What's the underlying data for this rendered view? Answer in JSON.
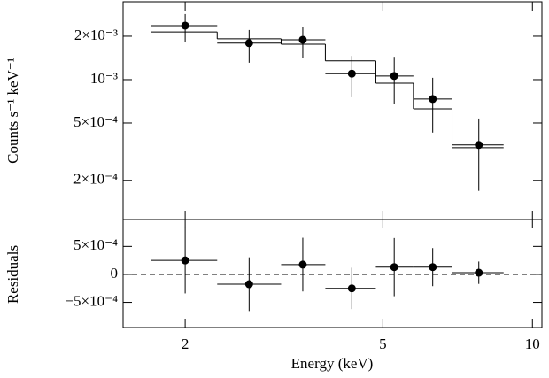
{
  "chart_data": [
    {
      "type": "step",
      "ylabel": "Counts s⁻¹ keV⁻¹",
      "x": [
        2.0,
        2.69,
        3.45,
        4.33,
        5.27,
        6.3,
        7.8
      ],
      "x_low": [
        1.71,
        2.32,
        3.12,
        3.83,
        4.84,
        5.76,
        6.89
      ],
      "x_high": [
        2.32,
        3.12,
        3.83,
        4.84,
        5.76,
        6.89,
        8.75
      ],
      "values": [
        0.00237,
        0.00179,
        0.00189,
        0.0011,
        0.00106,
        0.000733,
        0.000352
      ],
      "y_lower": [
        0.00181,
        0.00131,
        0.00142,
        0.000754,
        0.000674,
        0.000429,
        0.000169
      ],
      "y_upper": [
        0.00285,
        0.00221,
        0.00233,
        0.00146,
        0.00144,
        0.00103,
        0.000537
      ],
      "model": [
        0.00214,
        0.00192,
        0.00176,
        0.00135,
        0.000945,
        0.000627,
        0.000337
      ],
      "xlog": true,
      "ylog": true,
      "xlim": [
        1.5,
        10.45
      ],
      "ylim": [
        0.000107,
        0.00347
      ],
      "yticks": [
        {
          "value": 0.002,
          "label": "2×10⁻³"
        },
        {
          "value": 0.001,
          "label": "10⁻³"
        },
        {
          "value": 0.0005,
          "label": "5×10⁻⁴"
        },
        {
          "value": 0.0002,
          "label": "2×10⁻⁴"
        }
      ],
      "color": "#000000"
    },
    {
      "type": "residual",
      "ylabel": "Residuals",
      "xlabel": "Energy (keV)",
      "values": [
        0.00025,
        -0.000175,
        0.000175,
        -0.00025,
        0.00013,
        0.00013,
        3e-05
      ],
      "errors": [
        0.00059,
        0.00048,
        0.00048,
        0.00037,
        0.00052,
        0.00034,
        0.0002
      ],
      "xlog": true,
      "xlim": [
        1.5,
        10.45
      ],
      "xticks": [
        2,
        5,
        10
      ],
      "ylim": [
        -0.00095,
        0.00098
      ],
      "yticks": [
        {
          "value": 0.0005,
          "label": "5×10⁻⁴"
        },
        0,
        {
          "value": -0.0005,
          "label": "−5×10⁻⁴"
        }
      ],
      "color": "#000000"
    }
  ]
}
